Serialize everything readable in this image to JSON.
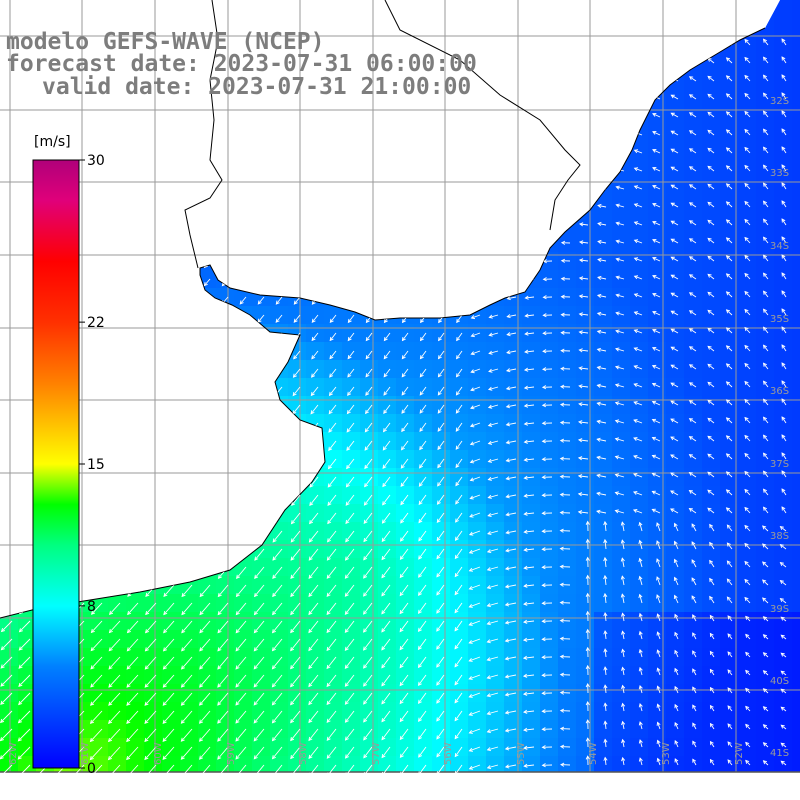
{
  "title": {
    "line1": "modelo GEFS-WAVE (NCEP)",
    "line2": "forecast date: 2023-07-31 06:00:00",
    "line3": "valid date: 2023-07-31 21:00:00"
  },
  "colorbar": {
    "unit": "[m/s]",
    "min": 0,
    "max": 30,
    "tick_labels": [
      "30",
      "22",
      "15",
      "8",
      "0"
    ],
    "tick_values": [
      30,
      22,
      15,
      8,
      0
    ],
    "colors": [
      "#0000ff",
      "#00b4ff",
      "#00ffff",
      "#00ff00",
      "#80ff00",
      "#ffff00",
      "#ff8000",
      "#ff0000",
      "#ff0080",
      "#c0007a"
    ]
  },
  "map": {
    "field": "wind speed with direction arrows",
    "lat_labels": [
      "32S",
      "33S",
      "34S",
      "35S",
      "36S",
      "37S",
      "38S",
      "39S",
      "40S",
      "41S"
    ],
    "lon_labels": [
      "62W",
      "61W",
      "60W",
      "59W",
      "58W",
      "57W",
      "56W",
      "55W",
      "54W",
      "53W",
      "52W"
    ],
    "ocean_color_scale": "speed",
    "land_color": "#ffffff",
    "grid_color": "#9a9a9a",
    "coast_color": "#000000"
  }
}
